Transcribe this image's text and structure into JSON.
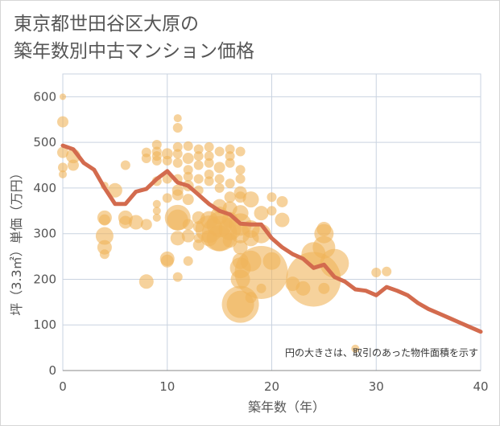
{
  "chart_data": {
    "type": "scatter",
    "title_line1": "東京都世田谷区大原の",
    "title_line2": "築年数別中古マンション価格",
    "xlabel": "築年数（年）",
    "ylabel": "坪（3.3㎡）単価（万円）",
    "note": "円の大きさは、取引のあった物件面積を示す",
    "xlim": [
      0,
      40
    ],
    "ylim": [
      0,
      650
    ],
    "xticks": [
      "0",
      "10",
      "20",
      "30",
      "40"
    ],
    "yticks": [
      "0",
      "100",
      "200",
      "300",
      "400",
      "500",
      "600"
    ],
    "grid": true,
    "colors": {
      "bubble": "#F0B45A",
      "line": "#D36B4E",
      "grid": "#C9D3E0"
    },
    "scatter": [
      {
        "x": 0,
        "y": 600,
        "s": 4
      },
      {
        "x": 0,
        "y": 545,
        "s": 7
      },
      {
        "x": 0,
        "y": 478,
        "s": 7
      },
      {
        "x": 0,
        "y": 445,
        "s": 6
      },
      {
        "x": 0,
        "y": 430,
        "s": 5
      },
      {
        "x": 1,
        "y": 470,
        "s": 9
      },
      {
        "x": 1,
        "y": 450,
        "s": 7
      },
      {
        "x": 4,
        "y": 405,
        "s": 5
      },
      {
        "x": 4,
        "y": 335,
        "s": 9
      },
      {
        "x": 4,
        "y": 330,
        "s": 7
      },
      {
        "x": 4,
        "y": 295,
        "s": 11
      },
      {
        "x": 4,
        "y": 270,
        "s": 9
      },
      {
        "x": 4,
        "y": 255,
        "s": 6
      },
      {
        "x": 5,
        "y": 395,
        "s": 9
      },
      {
        "x": 6,
        "y": 450,
        "s": 6
      },
      {
        "x": 6,
        "y": 335,
        "s": 9
      },
      {
        "x": 6,
        "y": 325,
        "s": 8
      },
      {
        "x": 7,
        "y": 325,
        "s": 9
      },
      {
        "x": 8,
        "y": 478,
        "s": 6
      },
      {
        "x": 8,
        "y": 465,
        "s": 6
      },
      {
        "x": 8,
        "y": 320,
        "s": 7
      },
      {
        "x": 8,
        "y": 195,
        "s": 9
      },
      {
        "x": 9,
        "y": 495,
        "s": 6
      },
      {
        "x": 9,
        "y": 480,
        "s": 6
      },
      {
        "x": 9,
        "y": 470,
        "s": 6
      },
      {
        "x": 9,
        "y": 460,
        "s": 6
      },
      {
        "x": 9,
        "y": 415,
        "s": 6
      },
      {
        "x": 9,
        "y": 365,
        "s": 5
      },
      {
        "x": 9,
        "y": 350,
        "s": 5
      },
      {
        "x": 9,
        "y": 335,
        "s": 5
      },
      {
        "x": 10,
        "y": 475,
        "s": 7
      },
      {
        "x": 10,
        "y": 460,
        "s": 6
      },
      {
        "x": 10,
        "y": 420,
        "s": 6
      },
      {
        "x": 10,
        "y": 378,
        "s": 6
      },
      {
        "x": 10,
        "y": 245,
        "s": 9
      },
      {
        "x": 10,
        "y": 240,
        "s": 8
      },
      {
        "x": 11,
        "y": 553,
        "s": 5
      },
      {
        "x": 11,
        "y": 532,
        "s": 6
      },
      {
        "x": 11,
        "y": 490,
        "s": 6
      },
      {
        "x": 11,
        "y": 475,
        "s": 6
      },
      {
        "x": 11,
        "y": 455,
        "s": 6
      },
      {
        "x": 11,
        "y": 420,
        "s": 6
      },
      {
        "x": 11,
        "y": 395,
        "s": 7
      },
      {
        "x": 11,
        "y": 385,
        "s": 7
      },
      {
        "x": 11,
        "y": 335,
        "s": 16
      },
      {
        "x": 11,
        "y": 330,
        "s": 13
      },
      {
        "x": 11,
        "y": 290,
        "s": 9
      },
      {
        "x": 11,
        "y": 205,
        "s": 6
      },
      {
        "x": 12,
        "y": 492,
        "s": 6
      },
      {
        "x": 12,
        "y": 465,
        "s": 7
      },
      {
        "x": 12,
        "y": 440,
        "s": 6
      },
      {
        "x": 12,
        "y": 425,
        "s": 6
      },
      {
        "x": 12,
        "y": 405,
        "s": 7
      },
      {
        "x": 12,
        "y": 375,
        "s": 7
      },
      {
        "x": 12,
        "y": 320,
        "s": 7
      },
      {
        "x": 12,
        "y": 295,
        "s": 8
      },
      {
        "x": 12,
        "y": 240,
        "s": 6
      },
      {
        "x": 13,
        "y": 485,
        "s": 6
      },
      {
        "x": 13,
        "y": 470,
        "s": 6
      },
      {
        "x": 13,
        "y": 450,
        "s": 6
      },
      {
        "x": 13,
        "y": 420,
        "s": 6
      },
      {
        "x": 13,
        "y": 395,
        "s": 6
      },
      {
        "x": 13,
        "y": 335,
        "s": 8
      },
      {
        "x": 13,
        "y": 315,
        "s": 7
      },
      {
        "x": 13,
        "y": 290,
        "s": 6
      },
      {
        "x": 13,
        "y": 275,
        "s": 7
      },
      {
        "x": 14,
        "y": 490,
        "s": 6
      },
      {
        "x": 14,
        "y": 470,
        "s": 6
      },
      {
        "x": 14,
        "y": 455,
        "s": 6
      },
      {
        "x": 14,
        "y": 430,
        "s": 6
      },
      {
        "x": 14,
        "y": 415,
        "s": 6
      },
      {
        "x": 14,
        "y": 330,
        "s": 11
      },
      {
        "x": 14,
        "y": 310,
        "s": 17
      },
      {
        "x": 14,
        "y": 290,
        "s": 10
      },
      {
        "x": 15,
        "y": 480,
        "s": 6
      },
      {
        "x": 15,
        "y": 445,
        "s": 7
      },
      {
        "x": 15,
        "y": 420,
        "s": 6
      },
      {
        "x": 15,
        "y": 400,
        "s": 6
      },
      {
        "x": 15,
        "y": 360,
        "s": 9
      },
      {
        "x": 15,
        "y": 340,
        "s": 11
      },
      {
        "x": 15,
        "y": 320,
        "s": 16
      },
      {
        "x": 15,
        "y": 300,
        "s": 22
      },
      {
        "x": 15,
        "y": 290,
        "s": 16
      },
      {
        "x": 16,
        "y": 485,
        "s": 6
      },
      {
        "x": 16,
        "y": 470,
        "s": 6
      },
      {
        "x": 16,
        "y": 455,
        "s": 6
      },
      {
        "x": 16,
        "y": 410,
        "s": 6
      },
      {
        "x": 16,
        "y": 380,
        "s": 7
      },
      {
        "x": 16,
        "y": 355,
        "s": 9
      },
      {
        "x": 16,
        "y": 330,
        "s": 10
      },
      {
        "x": 16,
        "y": 310,
        "s": 14
      },
      {
        "x": 16,
        "y": 285,
        "s": 9
      },
      {
        "x": 17,
        "y": 480,
        "s": 6
      },
      {
        "x": 17,
        "y": 440,
        "s": 6
      },
      {
        "x": 17,
        "y": 420,
        "s": 6
      },
      {
        "x": 17,
        "y": 390,
        "s": 8
      },
      {
        "x": 17,
        "y": 380,
        "s": 7
      },
      {
        "x": 17,
        "y": 345,
        "s": 10
      },
      {
        "x": 17,
        "y": 320,
        "s": 14
      },
      {
        "x": 17,
        "y": 300,
        "s": 12
      },
      {
        "x": 17,
        "y": 270,
        "s": 9
      },
      {
        "x": 17,
        "y": 240,
        "s": 10
      },
      {
        "x": 17,
        "y": 225,
        "s": 13
      },
      {
        "x": 17,
        "y": 200,
        "s": 12
      },
      {
        "x": 17,
        "y": 145,
        "s": 23
      },
      {
        "x": 17,
        "y": 145,
        "s": 17
      },
      {
        "x": 18,
        "y": 375,
        "s": 10
      },
      {
        "x": 18,
        "y": 310,
        "s": 11
      },
      {
        "x": 18,
        "y": 290,
        "s": 10
      },
      {
        "x": 18,
        "y": 240,
        "s": 13
      },
      {
        "x": 18,
        "y": 160,
        "s": 7
      },
      {
        "x": 19,
        "y": 345,
        "s": 9
      },
      {
        "x": 19,
        "y": 300,
        "s": 12
      },
      {
        "x": 19,
        "y": 215,
        "s": 33
      },
      {
        "x": 19,
        "y": 180,
        "s": 6
      },
      {
        "x": 20,
        "y": 380,
        "s": 6
      },
      {
        "x": 20,
        "y": 350,
        "s": 6
      },
      {
        "x": 20,
        "y": 240,
        "s": 11
      },
      {
        "x": 21,
        "y": 370,
        "s": 7
      },
      {
        "x": 21,
        "y": 330,
        "s": 9
      },
      {
        "x": 22,
        "y": 190,
        "s": 9
      },
      {
        "x": 23,
        "y": 180,
        "s": 9
      },
      {
        "x": 24,
        "y": 255,
        "s": 15
      },
      {
        "x": 24,
        "y": 200,
        "s": 34
      },
      {
        "x": 25,
        "y": 310,
        "s": 9
      },
      {
        "x": 25,
        "y": 300,
        "s": 12
      },
      {
        "x": 25,
        "y": 270,
        "s": 14
      },
      {
        "x": 25,
        "y": 180,
        "s": 7
      },
      {
        "x": 26,
        "y": 235,
        "s": 18
      },
      {
        "x": 28,
        "y": 48,
        "s": 5
      },
      {
        "x": 30,
        "y": 215,
        "s": 6
      },
      {
        "x": 31,
        "y": 217,
        "s": 6
      }
    ],
    "line": {
      "x": [
        0,
        1,
        2,
        3,
        4,
        5,
        6,
        7,
        8,
        9,
        10,
        11,
        12,
        13,
        14,
        15,
        16,
        17,
        18,
        19,
        20,
        21,
        22,
        23,
        24,
        25,
        26,
        27,
        28,
        29,
        30,
        31,
        32,
        33,
        34,
        35,
        36,
        37,
        38,
        39,
        40
      ],
      "y": [
        493,
        485,
        455,
        440,
        400,
        365,
        365,
        392,
        398,
        420,
        437,
        412,
        405,
        385,
        365,
        350,
        342,
        322,
        320,
        320,
        290,
        270,
        255,
        245,
        225,
        232,
        205,
        195,
        178,
        175,
        165,
        183,
        175,
        165,
        148,
        135,
        125,
        115,
        105,
        95,
        85
      ]
    }
  }
}
